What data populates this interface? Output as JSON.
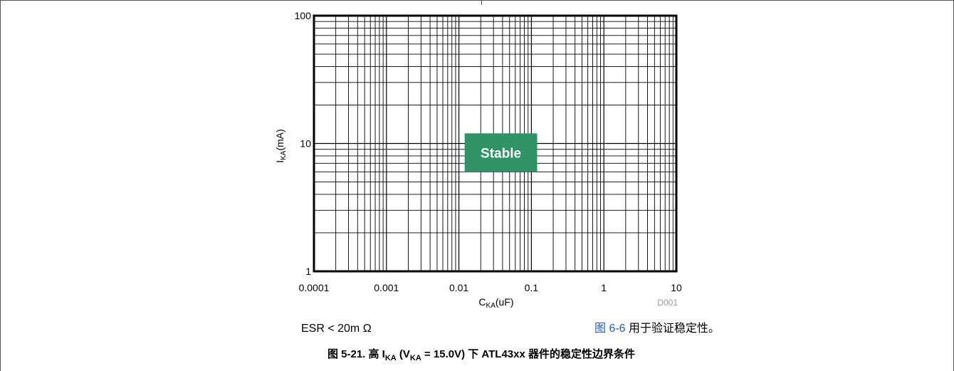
{
  "chart_data": {
    "type": "scatter",
    "title": "",
    "xlabel": {
      "main": "C",
      "sub": "KA",
      "rest": "(uF)"
    },
    "ylabel": {
      "main": "I",
      "sub": "KA",
      "rest": "(mA)"
    },
    "x_scale": "log",
    "y_scale": "log",
    "xlim": [
      0.0001,
      10
    ],
    "ylim": [
      1,
      100
    ],
    "x_ticks": [
      {
        "value": 0.0001,
        "label": "0.0001"
      },
      {
        "value": 0.001,
        "label": "0.001"
      },
      {
        "value": 0.01,
        "label": "0.01"
      },
      {
        "value": 0.1,
        "label": "0.1"
      },
      {
        "value": 1,
        "label": "1"
      },
      {
        "value": 10,
        "label": "10"
      }
    ],
    "y_ticks": [
      {
        "value": 1,
        "label": "1"
      },
      {
        "value": 10,
        "label": "10"
      },
      {
        "value": 100,
        "label": "100"
      }
    ],
    "grid": true,
    "series": [],
    "region": {
      "label": "Stable",
      "x_range": [
        0.012,
        0.12
      ],
      "y_range": [
        6,
        12
      ],
      "color": "#2e9466"
    },
    "code": "D001"
  },
  "notes": {
    "esr_text": "ESR < 20m Ω",
    "ref_link": "图 6-6",
    "ref_rest": " 用于验证稳定性。"
  },
  "caption": {
    "prefix": "图 5-21. 高 I",
    "sub1": "KA",
    "mid": " (V",
    "sub2": "KA",
    "suffix": " = 15.0V) 下 ATL43xx 器件的稳定性边界条件"
  },
  "colors": {
    "grid": "#000000",
    "link": "#2060d8",
    "code": "#999999",
    "region": "#2e9466"
  }
}
